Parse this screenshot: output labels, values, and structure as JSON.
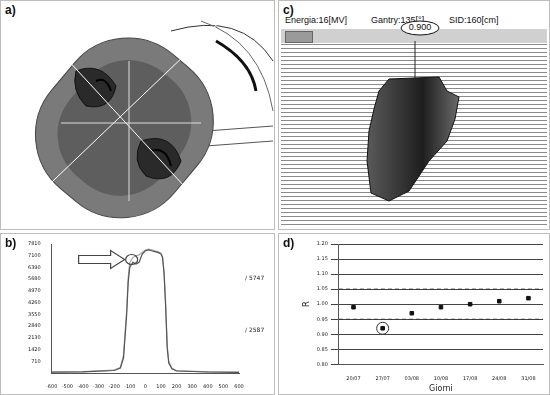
{
  "labels": {
    "a": "a)",
    "b": "b)",
    "c": "c)",
    "d": "d)"
  },
  "panel_c": {
    "header": [
      "Energia:16[MV]",
      "Gantry:135[°]",
      "SID:160[cm]"
    ],
    "value": "0.900"
  },
  "chart_data": [
    {
      "type": "line",
      "xlim": [
        -600,
        600
      ],
      "xticks": [
        -600,
        -500,
        -400,
        -300,
        -200,
        -100,
        0,
        100,
        200,
        300,
        400,
        500,
        600
      ],
      "ylim": [
        0,
        7810
      ],
      "yticks": [
        710,
        1420,
        2130,
        2840,
        3550,
        4260,
        4970,
        5680,
        6390,
        7100,
        7810
      ],
      "grid": false,
      "annotations": [
        {
          "y": 5747,
          "text": "/ 5747"
        },
        {
          "y": 2587,
          "text": "/ 2587"
        }
      ],
      "series": [
        {
          "color": "#555555",
          "x": [
            -600,
            -400,
            -200,
            -160,
            -140,
            -120,
            -110,
            -100,
            -80,
            -60,
            -40,
            -20,
            0,
            20,
            40,
            60,
            80,
            100,
            110,
            120,
            130,
            140,
            150,
            170,
            200,
            400,
            600
          ],
          "values": [
            50,
            70,
            150,
            300,
            900,
            3500,
            5500,
            6400,
            6700,
            6600,
            6700,
            7200,
            7400,
            7450,
            7400,
            7350,
            7300,
            7200,
            7000,
            6000,
            4000,
            1500,
            600,
            250,
            120,
            60,
            40
          ]
        },
        {
          "color": "#a8a8a8",
          "x": [
            -600,
            -400,
            -200,
            -160,
            -140,
            -120,
            -110,
            -100,
            -80,
            -60,
            -40,
            -20,
            0,
            20,
            40,
            60,
            80,
            100,
            110,
            120,
            130,
            140,
            150,
            170,
            200,
            400,
            600
          ],
          "values": [
            60,
            80,
            170,
            350,
            1100,
            3800,
            5800,
            6700,
            7000,
            7100,
            7150,
            7300,
            7450,
            7500,
            7450,
            7400,
            7350,
            7250,
            7050,
            6100,
            4200,
            1700,
            700,
            300,
            140,
            70,
            50
          ]
        }
      ]
    },
    {
      "type": "scatter",
      "x_label": "Giorni",
      "y_label": "R",
      "categories": [
        "20/07",
        "27/07",
        "03/08",
        "10/08",
        "17/08",
        "24/08",
        "31/08"
      ],
      "values": [
        0.99,
        0.92,
        0.97,
        0.99,
        1.0,
        1.01,
        1.02
      ],
      "circled": [
        false,
        true,
        false,
        false,
        false,
        false,
        false
      ],
      "tolerance": [
        0.95,
        1.05
      ],
      "ylim": [
        0.8,
        1.2
      ],
      "yticks": [
        {
          "value": 0.8,
          "label": "0.80"
        },
        {
          "value": 0.85,
          "label": "0.85"
        },
        {
          "value": 0.9,
          "label": "0.90"
        },
        {
          "value": 0.95,
          "label": "0.95"
        },
        {
          "value": 1.0,
          "label": "1.00"
        },
        {
          "value": 1.05,
          "label": "1.05"
        },
        {
          "value": 1.1,
          "label": "1.10"
        },
        {
          "value": 1.15,
          "label": "1.15"
        },
        {
          "value": 1.2,
          "label": "1.20"
        }
      ],
      "grid": true,
      "color": "#111111",
      "marker": "square"
    }
  ]
}
